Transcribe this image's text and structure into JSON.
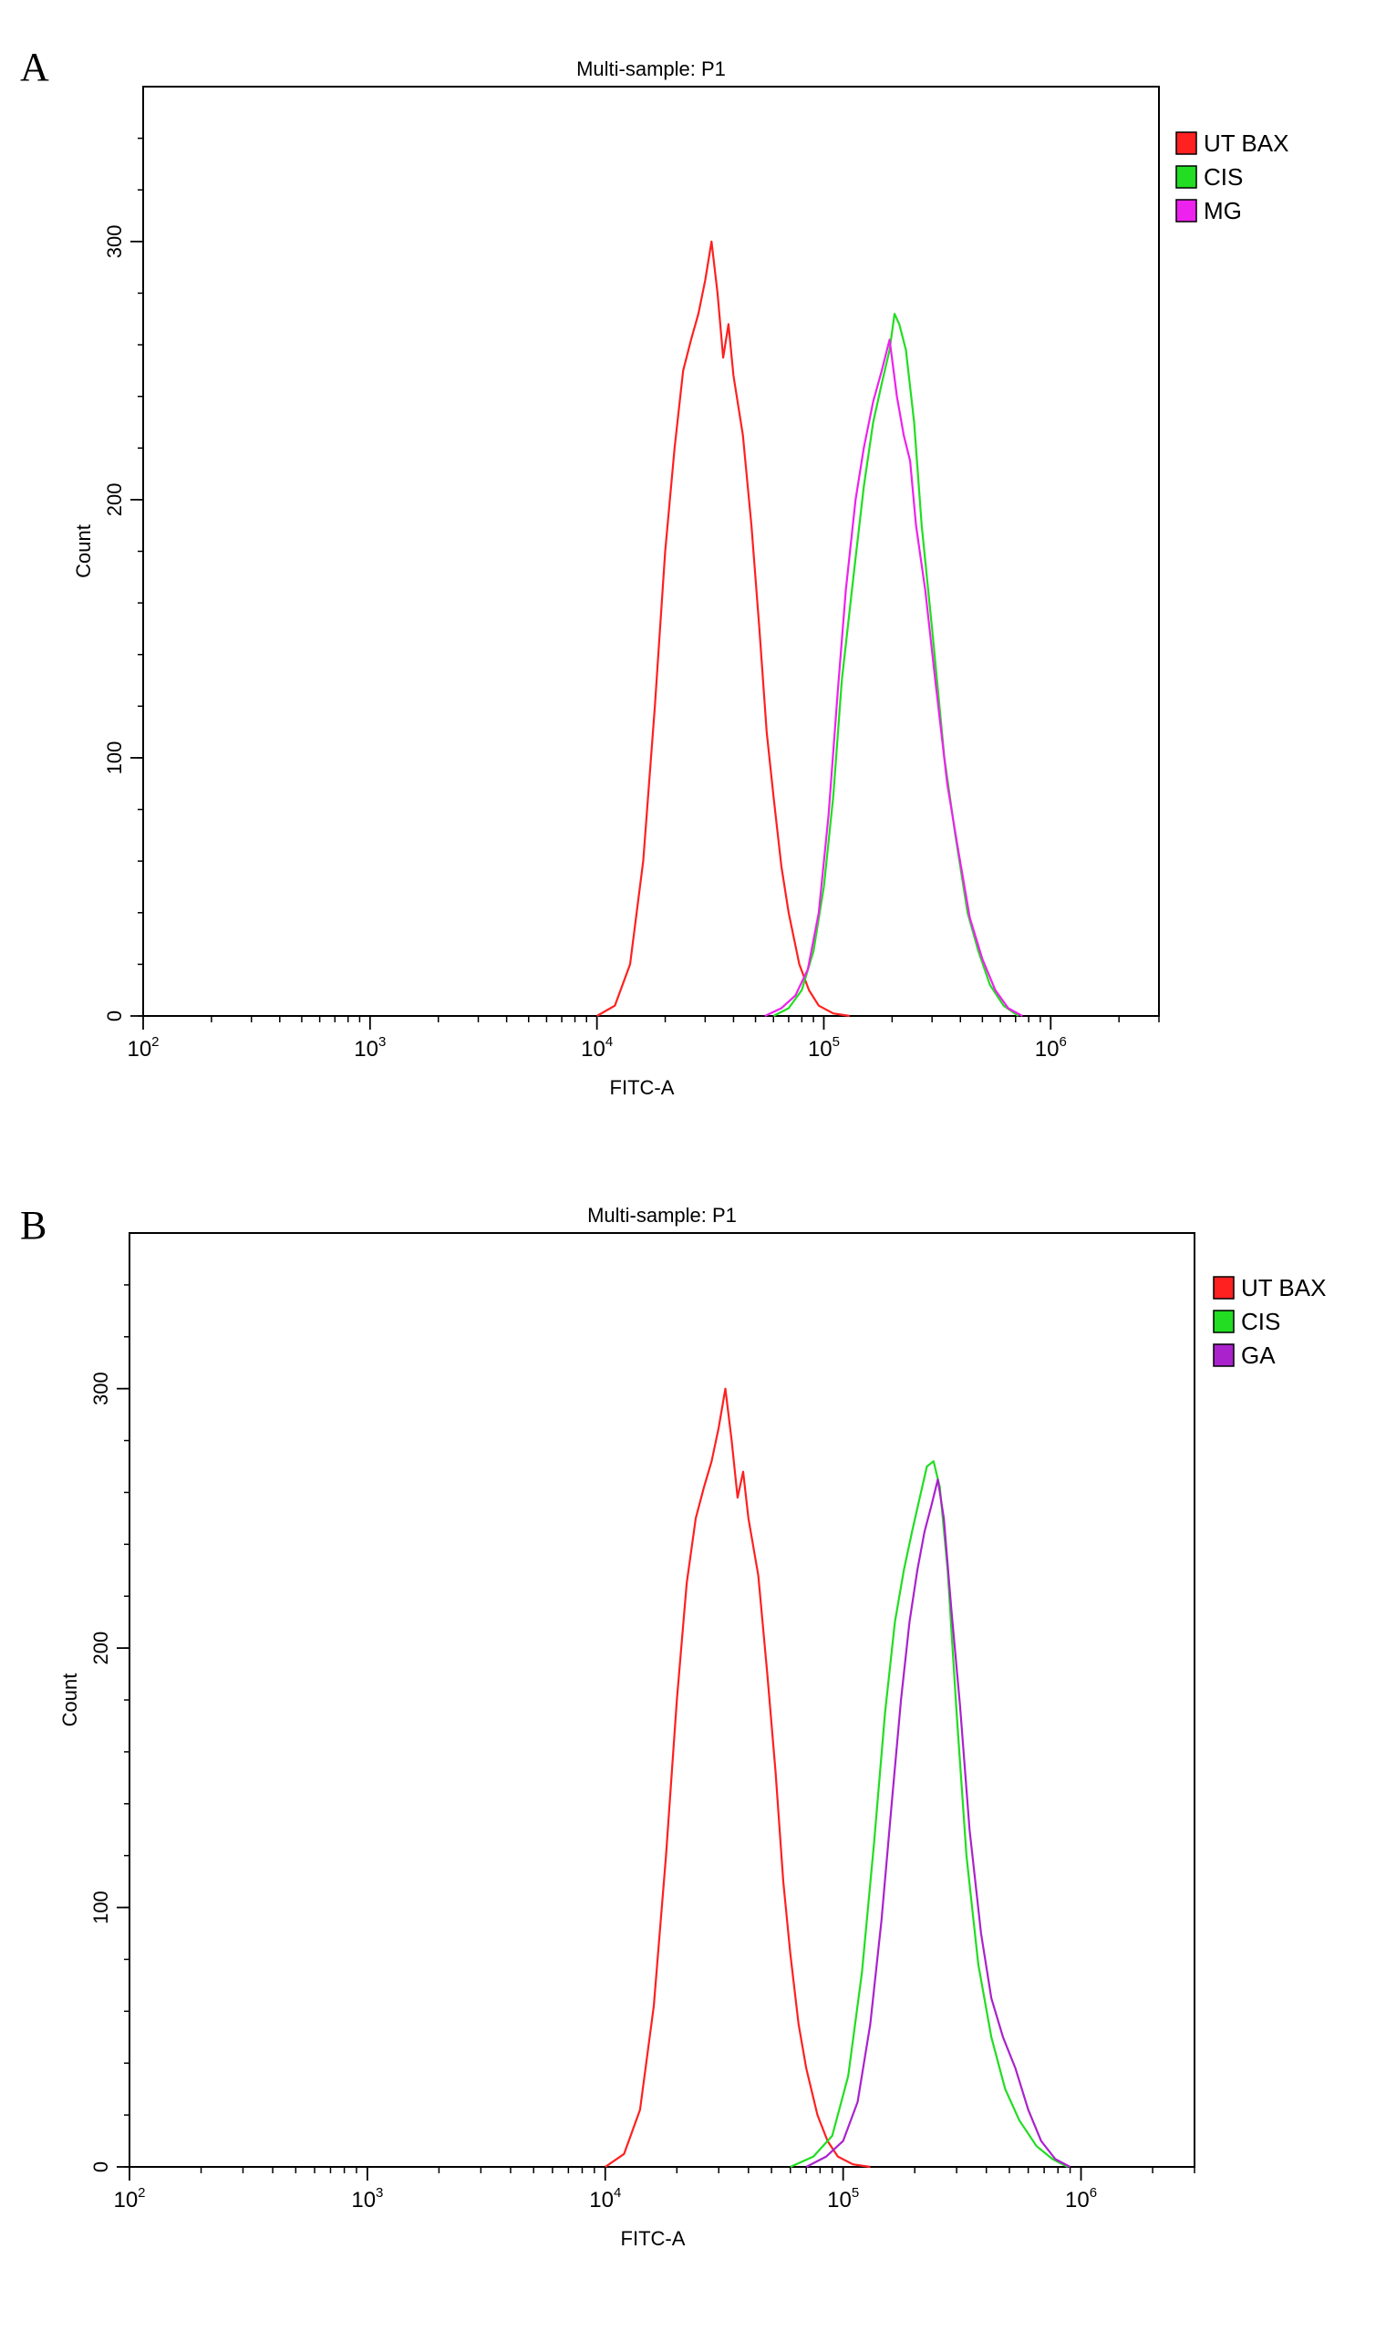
{
  "chart_data": [
    {
      "panel_label": "A",
      "type": "histogram",
      "title": "Multi-sample: P1",
      "xlabel": "FITC-A",
      "ylabel": "Count",
      "xscale": "log",
      "xlim": [
        100,
        3000000
      ],
      "ylim": [
        0,
        360
      ],
      "x_ticks": [
        {
          "value": 100,
          "base": "10",
          "exp": "2"
        },
        {
          "value": 1000,
          "base": "10",
          "exp": "3"
        },
        {
          "value": 10000,
          "base": "10",
          "exp": "4"
        },
        {
          "value": 100000,
          "base": "10",
          "exp": "5"
        },
        {
          "value": 1000000,
          "base": "10",
          "exp": "6"
        }
      ],
      "y_ticks": [
        {
          "value": 0,
          "label": "0"
        },
        {
          "value": 100,
          "label": "100"
        },
        {
          "value": 200,
          "label": "200"
        },
        {
          "value": 300,
          "label": "300"
        }
      ],
      "legend_position": "outside-top-right",
      "series": [
        {
          "name": "UT BAX",
          "color": "#ff2020",
          "points": [
            [
              10000,
              0
            ],
            [
              12000,
              4
            ],
            [
              14000,
              20
            ],
            [
              16000,
              60
            ],
            [
              18000,
              120
            ],
            [
              20000,
              180
            ],
            [
              22000,
              220
            ],
            [
              24000,
              250
            ],
            [
              26000,
              262
            ],
            [
              28000,
              272
            ],
            [
              30000,
              285
            ],
            [
              32000,
              300
            ],
            [
              34000,
              280
            ],
            [
              36000,
              255
            ],
            [
              38000,
              268
            ],
            [
              40000,
              248
            ],
            [
              44000,
              225
            ],
            [
              48000,
              190
            ],
            [
              52000,
              150
            ],
            [
              56000,
              110
            ],
            [
              60000,
              85
            ],
            [
              65000,
              58
            ],
            [
              70000,
              40
            ],
            [
              78000,
              20
            ],
            [
              86000,
              10
            ],
            [
              95000,
              4
            ],
            [
              110000,
              1
            ],
            [
              130000,
              0
            ]
          ]
        },
        {
          "name": "CIS",
          "color": "#22dd22",
          "points": [
            [
              60000,
              0
            ],
            [
              70000,
              3
            ],
            [
              80000,
              10
            ],
            [
              90000,
              25
            ],
            [
              100000,
              50
            ],
            [
              110000,
              85
            ],
            [
              120000,
              130
            ],
            [
              135000,
              170
            ],
            [
              150000,
              205
            ],
            [
              165000,
              230
            ],
            [
              180000,
              245
            ],
            [
              195000,
              258
            ],
            [
              205000,
              272
            ],
            [
              215000,
              268
            ],
            [
              230000,
              258
            ],
            [
              250000,
              230
            ],
            [
              270000,
              190
            ],
            [
              300000,
              150
            ],
            [
              340000,
              100
            ],
            [
              380000,
              70
            ],
            [
              430000,
              40
            ],
            [
              480000,
              25
            ],
            [
              540000,
              12
            ],
            [
              620000,
              4
            ],
            [
              720000,
              0
            ]
          ]
        },
        {
          "name": "MG",
          "color": "#ee22ee",
          "points": [
            [
              55000,
              0
            ],
            [
              65000,
              3
            ],
            [
              75000,
              8
            ],
            [
              85000,
              18
            ],
            [
              95000,
              40
            ],
            [
              105000,
              78
            ],
            [
              115000,
              125
            ],
            [
              125000,
              165
            ],
            [
              138000,
              200
            ],
            [
              150000,
              220
            ],
            [
              165000,
              238
            ],
            [
              180000,
              250
            ],
            [
              195000,
              262
            ],
            [
              210000,
              240
            ],
            [
              225000,
              225
            ],
            [
              240000,
              215
            ],
            [
              255000,
              190
            ],
            [
              280000,
              165
            ],
            [
              310000,
              130
            ],
            [
              350000,
              90
            ],
            [
              390000,
              65
            ],
            [
              440000,
              38
            ],
            [
              500000,
              22
            ],
            [
              570000,
              10
            ],
            [
              650000,
              3
            ],
            [
              750000,
              0
            ]
          ]
        }
      ]
    },
    {
      "panel_label": "B",
      "type": "histogram",
      "title": "Multi-sample: P1",
      "xlabel": "FITC-A",
      "ylabel": "Count",
      "xscale": "log",
      "xlim": [
        100,
        3000000
      ],
      "ylim": [
        0,
        360
      ],
      "x_ticks": [
        {
          "value": 100,
          "base": "10",
          "exp": "2"
        },
        {
          "value": 1000,
          "base": "10",
          "exp": "3"
        },
        {
          "value": 10000,
          "base": "10",
          "exp": "4"
        },
        {
          "value": 100000,
          "base": "10",
          "exp": "5"
        },
        {
          "value": 1000000,
          "base": "10",
          "exp": "6"
        }
      ],
      "y_ticks": [
        {
          "value": 0,
          "label": "0"
        },
        {
          "value": 100,
          "label": "100"
        },
        {
          "value": 200,
          "label": "200"
        },
        {
          "value": 300,
          "label": "300"
        }
      ],
      "legend_position": "outside-top-right",
      "series": [
        {
          "name": "UT BAX",
          "color": "#ff2020",
          "points": [
            [
              10000,
              0
            ],
            [
              12000,
              5
            ],
            [
              14000,
              22
            ],
            [
              16000,
              62
            ],
            [
              18000,
              120
            ],
            [
              20000,
              180
            ],
            [
              22000,
              225
            ],
            [
              24000,
              250
            ],
            [
              26000,
              262
            ],
            [
              28000,
              272
            ],
            [
              30000,
              285
            ],
            [
              32000,
              300
            ],
            [
              34000,
              280
            ],
            [
              36000,
              258
            ],
            [
              38000,
              268
            ],
            [
              40000,
              250
            ],
            [
              44000,
              228
            ],
            [
              48000,
              190
            ],
            [
              52000,
              152
            ],
            [
              56000,
              110
            ],
            [
              60000,
              82
            ],
            [
              65000,
              55
            ],
            [
              70000,
              38
            ],
            [
              78000,
              20
            ],
            [
              86000,
              10
            ],
            [
              95000,
              4
            ],
            [
              110000,
              1
            ],
            [
              130000,
              0
            ]
          ]
        },
        {
          "name": "CIS",
          "color": "#22dd22",
          "points": [
            [
              60000,
              0
            ],
            [
              75000,
              4
            ],
            [
              90000,
              12
            ],
            [
              105000,
              35
            ],
            [
              120000,
              75
            ],
            [
              135000,
              125
            ],
            [
              150000,
              175
            ],
            [
              165000,
              210
            ],
            [
              180000,
              230
            ],
            [
              195000,
              245
            ],
            [
              210000,
              258
            ],
            [
              225000,
              270
            ],
            [
              240000,
              272
            ],
            [
              255000,
              262
            ],
            [
              275000,
              230
            ],
            [
              300000,
              175
            ],
            [
              330000,
              120
            ],
            [
              370000,
              78
            ],
            [
              420000,
              50
            ],
            [
              480000,
              30
            ],
            [
              550000,
              18
            ],
            [
              650000,
              8
            ],
            [
              760000,
              3
            ],
            [
              880000,
              0
            ]
          ]
        },
        {
          "name": "GA",
          "color": "#aa22cc",
          "points": [
            [
              70000,
              0
            ],
            [
              85000,
              4
            ],
            [
              100000,
              10
            ],
            [
              115000,
              25
            ],
            [
              130000,
              55
            ],
            [
              145000,
              95
            ],
            [
              160000,
              140
            ],
            [
              175000,
              180
            ],
            [
              190000,
              210
            ],
            [
              205000,
              230
            ],
            [
              220000,
              245
            ],
            [
              235000,
              255
            ],
            [
              250000,
              265
            ],
            [
              265000,
              250
            ],
            [
              285000,
              215
            ],
            [
              310000,
              178
            ],
            [
              340000,
              130
            ],
            [
              380000,
              90
            ],
            [
              420000,
              65
            ],
            [
              470000,
              50
            ],
            [
              530000,
              38
            ],
            [
              600000,
              22
            ],
            [
              680000,
              10
            ],
            [
              780000,
              3
            ],
            [
              900000,
              0
            ]
          ]
        }
      ]
    }
  ]
}
